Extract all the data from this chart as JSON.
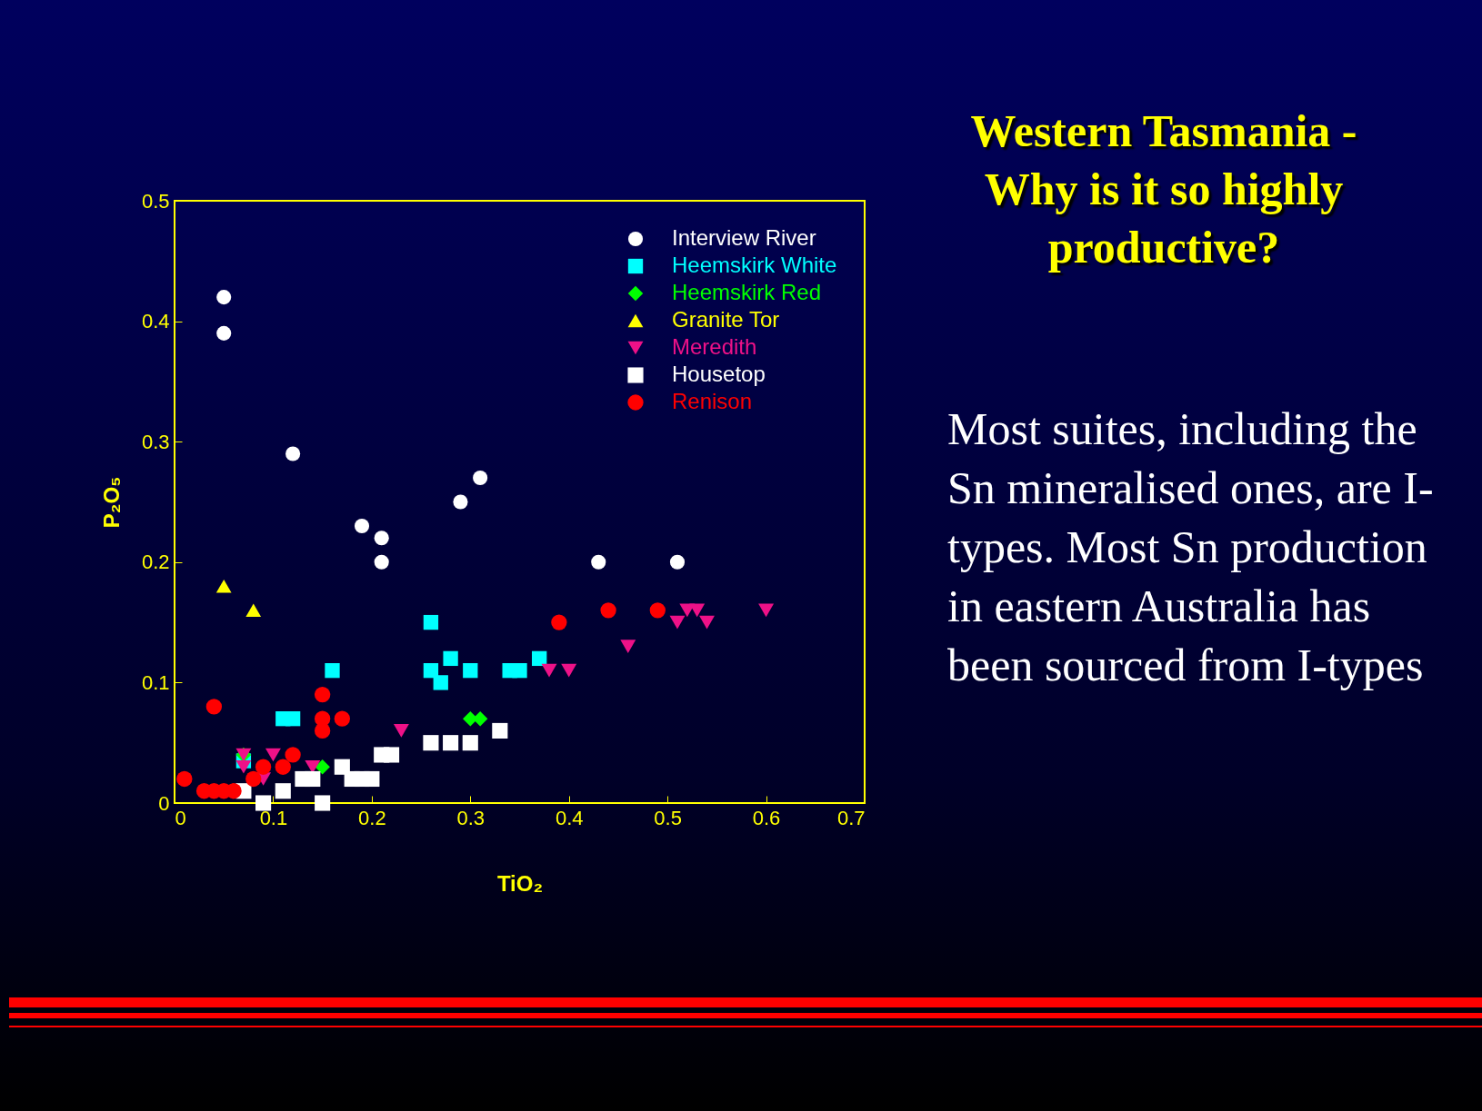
{
  "chart_data": {
    "type": "scatter",
    "title": "Western Tasmania - Why is it so highly productive?",
    "xlabel": "TiO₂",
    "ylabel": "P₂O₅",
    "annotations": [
      "Most suites, including the Sn mineralised ones, are I-types. Most Sn production in eastern Australia has been sourced from I-types"
    ],
    "xlim": [
      0,
      0.7
    ],
    "xticks": [
      0,
      0.1,
      0.2,
      0.3,
      0.4,
      0.5,
      0.6,
      0.7
    ],
    "ylim": [
      0,
      0.5
    ],
    "yticks": [
      0,
      0.1,
      0.2,
      0.3,
      0.4,
      0.5
    ],
    "grid": false,
    "legend": "top right",
    "series": [
      {
        "name": "Interview River",
        "color": "#ffffff",
        "marker": "circle",
        "x": [
          0.05,
          0.05,
          0.12,
          0.19,
          0.21,
          0.21,
          0.29,
          0.31,
          0.43,
          0.51
        ],
        "values": [
          0.42,
          0.39,
          0.29,
          0.23,
          0.22,
          0.2,
          0.25,
          0.27,
          0.2,
          0.2
        ]
      },
      {
        "name": "Heemskirk White",
        "color": "#00ffff",
        "marker": "square",
        "x": [
          0.07,
          0.11,
          0.12,
          0.16,
          0.26,
          0.26,
          0.27,
          0.28,
          0.3,
          0.34,
          0.35,
          0.37
        ],
        "values": [
          0.035,
          0.07,
          0.07,
          0.11,
          0.15,
          0.11,
          0.1,
          0.12,
          0.11,
          0.11,
          0.11,
          0.12
        ]
      },
      {
        "name": "Heemskirk Red",
        "color": "#00ff00",
        "marker": "diamond",
        "x": [
          0.07,
          0.15,
          0.3,
          0.31
        ],
        "values": [
          0.04,
          0.03,
          0.07,
          0.07
        ]
      },
      {
        "name": "Granite Tor",
        "color": "#ffff00",
        "marker": "triangle",
        "x": [
          0.05,
          0.08
        ],
        "values": [
          0.18,
          0.16
        ]
      },
      {
        "name": "Meredith",
        "color": "#ee1188",
        "marker": "triangle-down",
        "x": [
          0.07,
          0.07,
          0.09,
          0.1,
          0.14,
          0.23,
          0.38,
          0.4,
          0.46,
          0.51,
          0.52,
          0.53,
          0.54,
          0.6
        ],
        "values": [
          0.04,
          0.03,
          0.02,
          0.04,
          0.03,
          0.06,
          0.11,
          0.11,
          0.13,
          0.15,
          0.16,
          0.16,
          0.15,
          0.16
        ]
      },
      {
        "name": "Housetop",
        "color": "#ffffff",
        "marker": "square",
        "x": [
          0.07,
          0.09,
          0.11,
          0.13,
          0.14,
          0.15,
          0.17,
          0.18,
          0.19,
          0.2,
          0.21,
          0.22,
          0.26,
          0.28,
          0.3,
          0.33
        ],
        "values": [
          0.01,
          0.0,
          0.01,
          0.02,
          0.02,
          0.0,
          0.03,
          0.02,
          0.02,
          0.02,
          0.04,
          0.04,
          0.05,
          0.05,
          0.05,
          0.06
        ]
      },
      {
        "name": "Renison",
        "color": "#ff0000",
        "marker": "circle",
        "x": [
          0.01,
          0.03,
          0.04,
          0.05,
          0.06,
          0.04,
          0.08,
          0.09,
          0.11,
          0.12,
          0.15,
          0.15,
          0.15,
          0.17,
          0.39,
          0.44,
          0.49
        ],
        "values": [
          0.02,
          0.01,
          0.01,
          0.01,
          0.01,
          0.08,
          0.02,
          0.03,
          0.03,
          0.04,
          0.09,
          0.07,
          0.06,
          0.07,
          0.15,
          0.16,
          0.16
        ]
      }
    ]
  }
}
